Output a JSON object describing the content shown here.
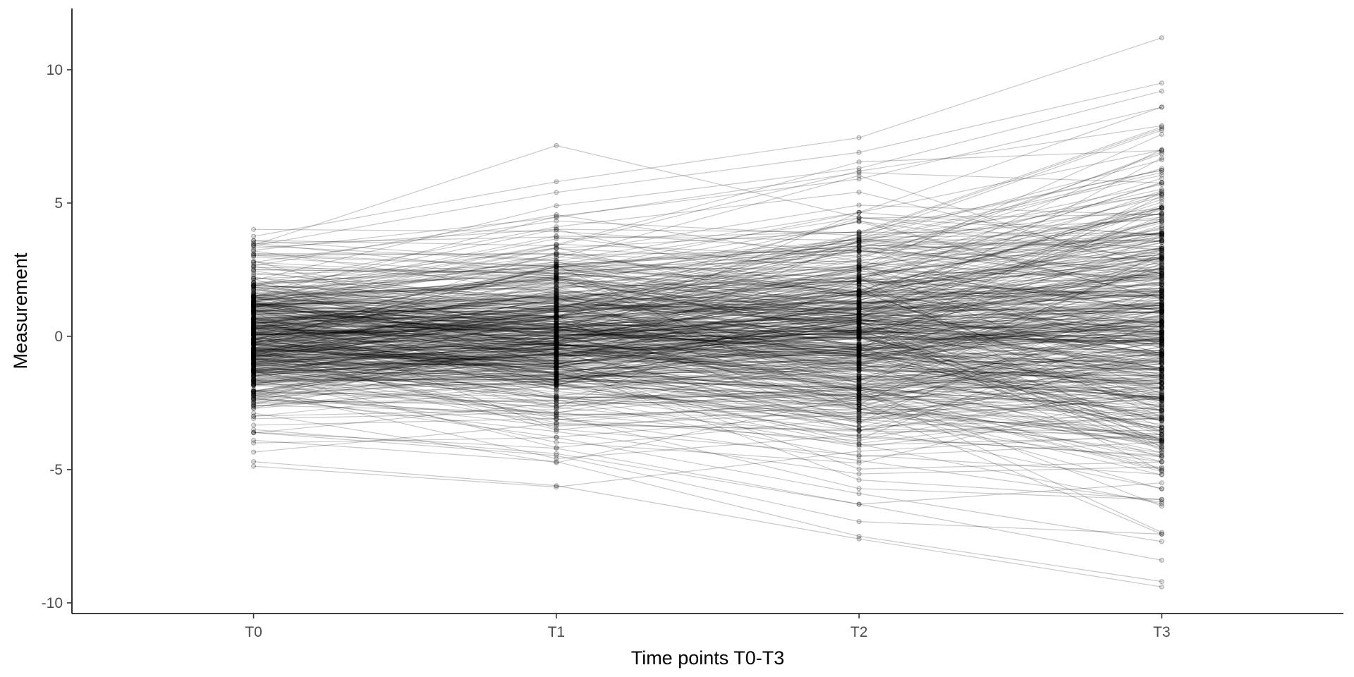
{
  "chart_data": {
    "type": "line",
    "title": "",
    "xlabel": "Time points T0-T3",
    "ylabel": "Measurement",
    "categories": [
      "T0",
      "T1",
      "T2",
      "T3"
    ],
    "xlim": [
      -0.6,
      3.6
    ],
    "ylim": [
      -10.4,
      12.3
    ],
    "y_ticks": [
      -10,
      -5,
      0,
      5,
      10
    ],
    "grid": false,
    "legend": "none",
    "n_subjects": 500,
    "spread_by_timepoint": [
      1.45,
      1.75,
      2.2,
      3.0
    ],
    "mean_by_timepoint": [
      0.0,
      0.1,
      0.2,
      0.3
    ],
    "line_color": "#000000",
    "line_opacity": 0.22,
    "point_opacity": 0.3,
    "series_highlights": [
      {
        "name": "",
        "values": [
          3.75,
          5.8,
          7.45,
          11.2
        ]
      },
      {
        "name": "",
        "values": [
          3.4,
          5.4,
          6.9,
          9.5
        ]
      },
      {
        "name": "",
        "values": [
          2.1,
          4.9,
          6.3,
          9.2
        ]
      },
      {
        "name": "",
        "values": [
          1.5,
          4.5,
          5.9,
          8.6
        ]
      },
      {
        "name": "",
        "values": [
          3.6,
          3.4,
          6.2,
          7.9
        ]
      },
      {
        "name": "",
        "values": [
          -4.7,
          -5.6,
          -7.6,
          -9.4
        ]
      },
      {
        "name": "",
        "values": [
          -3.9,
          -4.7,
          -7.5,
          -9.2
        ]
      },
      {
        "name": "",
        "values": [
          -3.5,
          -4.4,
          -6.3,
          -8.4
        ]
      },
      {
        "name": "",
        "values": [
          -4.0,
          -3.8,
          -5.9,
          -7.7
        ]
      },
      {
        "name": "",
        "values": [
          -3.6,
          -4.2,
          -6.3,
          -5.5
        ]
      }
    ]
  },
  "axes": {
    "axis_color": "#000000",
    "tick_label_color": "#4d4d4d"
  }
}
